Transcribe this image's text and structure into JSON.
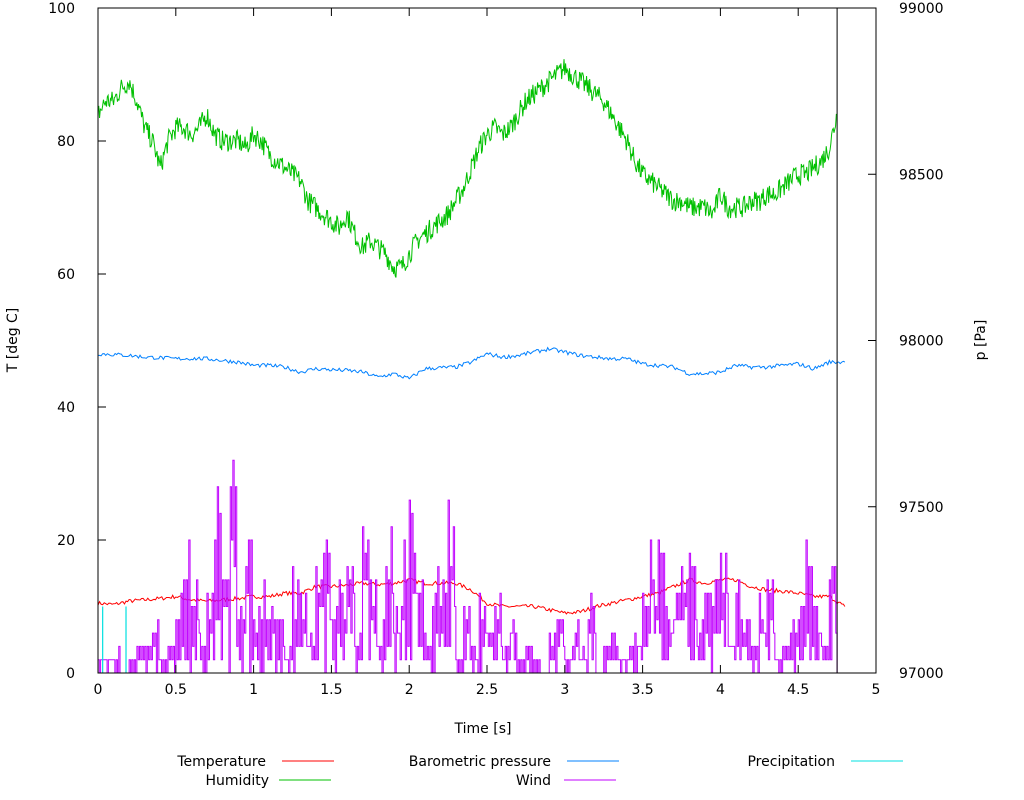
{
  "chart_data": {
    "type": "line",
    "title": "",
    "xlabel": "Time [s]",
    "ylabel": "T [deg C]",
    "y2label": "p [Pa]",
    "xlim": [
      0,
      5
    ],
    "ylim": [
      0,
      100
    ],
    "y2lim": [
      97000,
      99000
    ],
    "xticks": [
      "0",
      "0.5",
      "1",
      "1.5",
      "2",
      "2.5",
      "3",
      "3.5",
      "4",
      "4.5",
      "5"
    ],
    "yticks": [
      "0",
      "20",
      "40",
      "60",
      "80",
      "100"
    ],
    "y2ticks": [
      "97000",
      "97500",
      "98000",
      "98500",
      "99000"
    ],
    "grid": false,
    "legend_position": "bottom",
    "end_marker_x": 4.75,
    "series": [
      {
        "name": "Temperature",
        "color": "#ff0000",
        "axis": "left",
        "x_step": 0.1,
        "values": [
          10.5,
          10.3,
          10.8,
          11,
          11.2,
          11.5,
          11,
          10.8,
          11,
          11.2,
          11.5,
          11.5,
          12,
          12,
          13,
          13,
          13.2,
          13.5,
          13.3,
          13.5,
          14,
          13.5,
          13.5,
          13.5,
          12.5,
          10.5,
          10,
          10,
          10,
          9.5,
          9,
          9.2,
          10,
          10.5,
          11,
          11.5,
          12,
          13,
          14,
          13.5,
          14,
          14,
          13,
          12.5,
          12.3,
          12,
          11.5,
          11.5,
          10
        ]
      },
      {
        "name": "Humidity",
        "color": "#00c000",
        "axis": "left",
        "x_step": 0.05,
        "values": [
          84,
          86,
          86,
          88,
          89,
          86,
          82,
          80,
          76,
          80,
          82,
          82,
          81,
          82,
          84,
          81,
          80,
          80,
          80,
          79,
          81,
          80,
          78,
          77,
          76,
          75,
          74,
          71,
          70,
          69,
          68,
          67,
          69,
          66,
          64,
          65,
          64,
          63,
          61,
          61,
          63,
          65,
          66,
          67,
          68,
          69,
          71,
          73,
          76,
          79,
          81,
          82,
          81,
          82,
          84,
          86,
          87,
          88,
          89,
          90,
          91,
          90,
          89,
          88,
          87,
          86,
          84,
          82,
          80,
          77,
          75,
          74,
          73,
          72,
          71,
          71,
          70,
          70,
          70,
          69,
          72,
          70,
          70,
          70,
          71,
          71,
          72,
          72,
          73,
          74,
          75,
          75,
          76,
          77,
          79,
          84
        ]
      },
      {
        "name": "Barometric pressure",
        "color": "#0080ff",
        "axis": "right",
        "x_step": 0.1,
        "values": [
          97960,
          97958,
          97955,
          97950,
          97948,
          97945,
          97946,
          97945,
          97940,
          97935,
          97925,
          97925,
          97920,
          97905,
          97915,
          97912,
          97910,
          97905,
          97890,
          97900,
          97885,
          97915,
          97918,
          97920,
          97935,
          97960,
          97950,
          97955,
          97965,
          97975,
          97965,
          97955,
          97950,
          97945,
          97945,
          97930,
          97925,
          97920,
          97900,
          97900,
          97905,
          97925,
          97920,
          97920,
          97925,
          97930,
          97915,
          97935,
          97935
        ]
      },
      {
        "name": "Wind",
        "color": "#c000ff",
        "axis": "left",
        "x_step": 0.05,
        "values": [
          4,
          2,
          4,
          0,
          2,
          6,
          4,
          8,
          2,
          4,
          12,
          24,
          18,
          6,
          16,
          30,
          20,
          34,
          14,
          20,
          10,
          16,
          12,
          8,
          4,
          16,
          14,
          6,
          18,
          22,
          10,
          14,
          26,
          6,
          24,
          16,
          8,
          28,
          10,
          20,
          30,
          14,
          6,
          20,
          16,
          28,
          2,
          12,
          4,
          16,
          8,
          12,
          4,
          10,
          2,
          6,
          2,
          0,
          6,
          14,
          2,
          8,
          4,
          12,
          0,
          4,
          6,
          2,
          4,
          8,
          12,
          20,
          24,
          10,
          14,
          18,
          22,
          8,
          12,
          16,
          20,
          6,
          14,
          8,
          4,
          12,
          16,
          2,
          6,
          10,
          14,
          20,
          12,
          6,
          22,
          4
        ]
      },
      {
        "name": "Precipitation",
        "color": "#00e0e0",
        "axis": "left",
        "points": [
          [
            0.03,
            10
          ],
          [
            0.18,
            10
          ]
        ]
      }
    ]
  }
}
